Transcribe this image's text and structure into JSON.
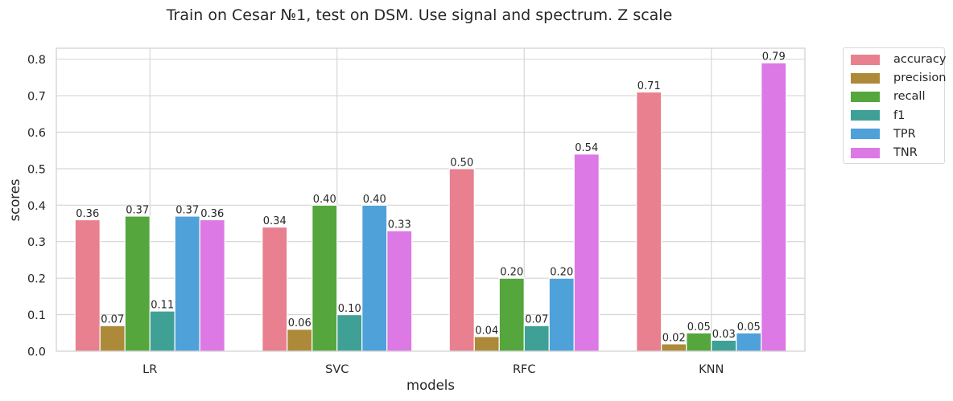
{
  "chart_data": {
    "type": "bar",
    "title": "Train on Cesar №1, test on DSM. Use signal and spectrum. Z scale",
    "xlabel": "models",
    "ylabel": "scores",
    "categories": [
      "LR",
      "SVC",
      "RFC",
      "KNN"
    ],
    "ylim": [
      0,
      0.83
    ],
    "yticks": [
      0.0,
      0.1,
      0.2,
      0.3,
      0.4,
      0.5,
      0.6,
      0.7,
      0.8
    ],
    "ytick_labels": [
      "0.0",
      "0.1",
      "0.2",
      "0.3",
      "0.4",
      "0.5",
      "0.6",
      "0.7",
      "0.8"
    ],
    "grid": true,
    "legend_position": "outside-right-top",
    "series": [
      {
        "name": "accuracy",
        "color": "#e8808f",
        "values": [
          0.36,
          0.34,
          0.5,
          0.71
        ],
        "labels": [
          "0.36",
          "0.34",
          "0.50",
          "0.71"
        ]
      },
      {
        "name": "precision",
        "color": "#ad8a3a",
        "values": [
          0.07,
          0.06,
          0.04,
          0.02
        ],
        "labels": [
          "0.07",
          "0.06",
          "0.04",
          "0.02"
        ]
      },
      {
        "name": "recall",
        "color": "#55a63c",
        "values": [
          0.37,
          0.4,
          0.2,
          0.05
        ],
        "labels": [
          "0.37",
          "0.40",
          "0.20",
          "0.05"
        ]
      },
      {
        "name": "f1",
        "color": "#3fa196",
        "values": [
          0.11,
          0.1,
          0.07,
          0.03
        ],
        "labels": [
          "0.11",
          "0.10",
          "0.07",
          "0.03"
        ]
      },
      {
        "name": "TPR",
        "color": "#4fa1da",
        "values": [
          0.37,
          0.4,
          0.2,
          0.05
        ],
        "labels": [
          "0.37",
          "0.40",
          "0.20",
          "0.05"
        ]
      },
      {
        "name": "TNR",
        "color": "#dc79e4",
        "values": [
          0.36,
          0.33,
          0.54,
          0.79
        ],
        "labels": [
          "0.36",
          "0.33",
          "0.54",
          "0.79"
        ]
      }
    ]
  }
}
